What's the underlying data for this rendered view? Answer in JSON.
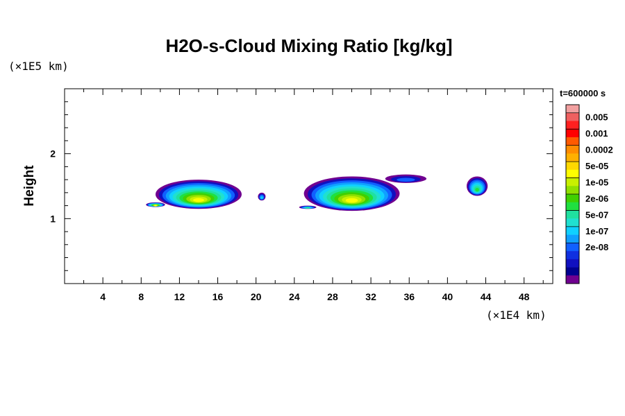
{
  "chart_data": {
    "type": "heatmap",
    "title": "H2O-s-Cloud Mixing Ratio [kg/kg]",
    "ylabel": "Height",
    "y_unit": "(×1E5 km)",
    "x_unit": "(×1E4 km)",
    "time_label": "t=600000 s",
    "xlim": [
      0,
      51
    ],
    "ylim": [
      0,
      3
    ],
    "x_ticks": [
      4,
      8,
      12,
      16,
      20,
      24,
      28,
      32,
      36,
      40,
      44,
      48
    ],
    "y_ticks": [
      1,
      2
    ],
    "legend": {
      "levels": [
        "0.005",
        "0.001",
        "0.0002",
        "5e-05",
        "1e-05",
        "2e-06",
        "5e-07",
        "1e-07",
        "2e-08"
      ],
      "colors": [
        "#f2a0a0",
        "#f06060",
        "#ff2020",
        "#ff0000",
        "#ff5a00",
        "#ff8c00",
        "#ffb000",
        "#ffd800",
        "#ffff00",
        "#c8f000",
        "#90e000",
        "#40d000",
        "#20e040",
        "#20e0a0",
        "#20e0d0",
        "#10d0ff",
        "#10a0ff",
        "#1060ff",
        "#1030e0",
        "#1010c0",
        "#000090",
        "#700090"
      ]
    },
    "cloud_regions": [
      {
        "x_range": [
          9.5,
          18.5
        ],
        "y_range": [
          1.15,
          1.6
        ],
        "max_level": "5e-05"
      },
      {
        "x_range": [
          8.5,
          10.5
        ],
        "y_range": [
          1.18,
          1.25
        ],
        "max_level": "5e-05"
      },
      {
        "x_range": [
          20.2,
          21.0
        ],
        "y_range": [
          1.28,
          1.4
        ],
        "max_level": "5e-07"
      },
      {
        "x_range": [
          24.5,
          26.3
        ],
        "y_range": [
          1.15,
          1.2
        ],
        "max_level": "2e-06"
      },
      {
        "x_range": [
          25.0,
          35.0
        ],
        "y_range": [
          1.12,
          1.65
        ],
        "max_level": "5e-05"
      },
      {
        "x_range": [
          33.5,
          37.8
        ],
        "y_range": [
          1.55,
          1.68
        ],
        "max_level": "1e-07"
      },
      {
        "x_range": [
          42.0,
          44.2
        ],
        "y_range": [
          1.35,
          1.65
        ],
        "max_level": "5e-06"
      }
    ]
  }
}
